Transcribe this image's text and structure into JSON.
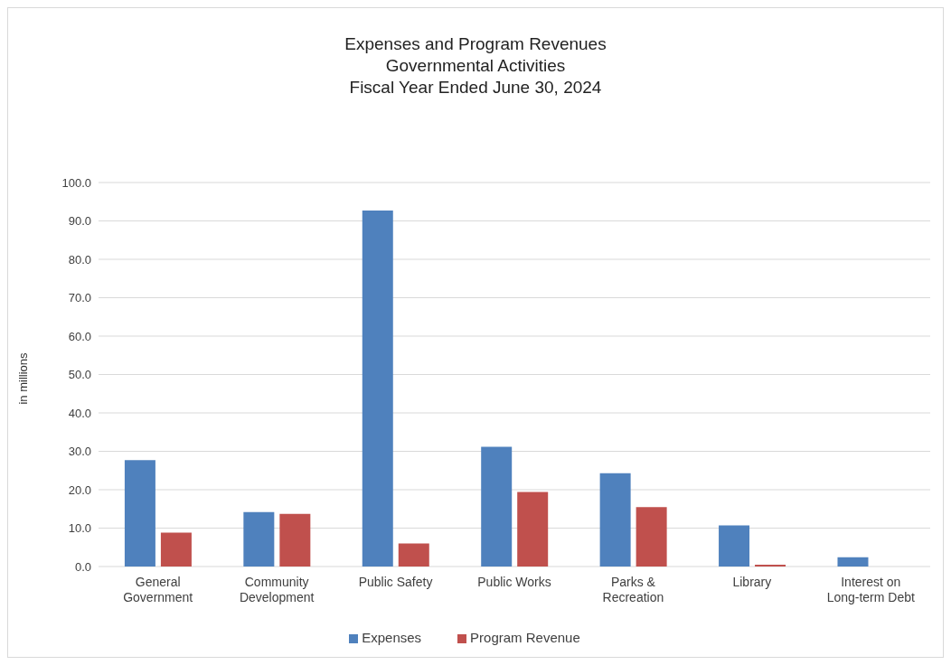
{
  "chart_data": {
    "type": "bar",
    "title": "Expenses and Program Revenues\nGovernmental Activities\nFiscal Year Ended June 30, 2024",
    "ylabel": "in millions",
    "categories": [
      "General Government",
      "Community Development",
      "Public Safety",
      "Public Works",
      "Parks & Recreation",
      "Library",
      "Interest on Long-term Debt"
    ],
    "series": [
      {
        "name": "Expenses",
        "color": "#4f81bd",
        "values": [
          27.7,
          14.2,
          92.7,
          31.2,
          24.3,
          10.7,
          2.4
        ]
      },
      {
        "name": "Program Revenue",
        "color": "#c0504d",
        "values": [
          8.8,
          13.7,
          6.0,
          19.4,
          15.5,
          0.5,
          0
        ]
      }
    ],
    "ylim": [
      0,
      100
    ],
    "yticks": [
      {
        "value": 0,
        "label": "0.0"
      },
      {
        "value": 10,
        "label": "10.0"
      },
      {
        "value": 20,
        "label": "20.0"
      },
      {
        "value": 30,
        "label": "30.0"
      },
      {
        "value": 40,
        "label": "40.0"
      },
      {
        "value": 50,
        "label": "50.0"
      },
      {
        "value": 60,
        "label": "60.0"
      },
      {
        "value": 70,
        "label": "70.0"
      },
      {
        "value": 80,
        "label": "80.0"
      },
      {
        "value": 90,
        "label": "90.0"
      },
      {
        "value": 100,
        "label": "100.0"
      }
    ],
    "grid": "y",
    "legend": "bottom"
  }
}
